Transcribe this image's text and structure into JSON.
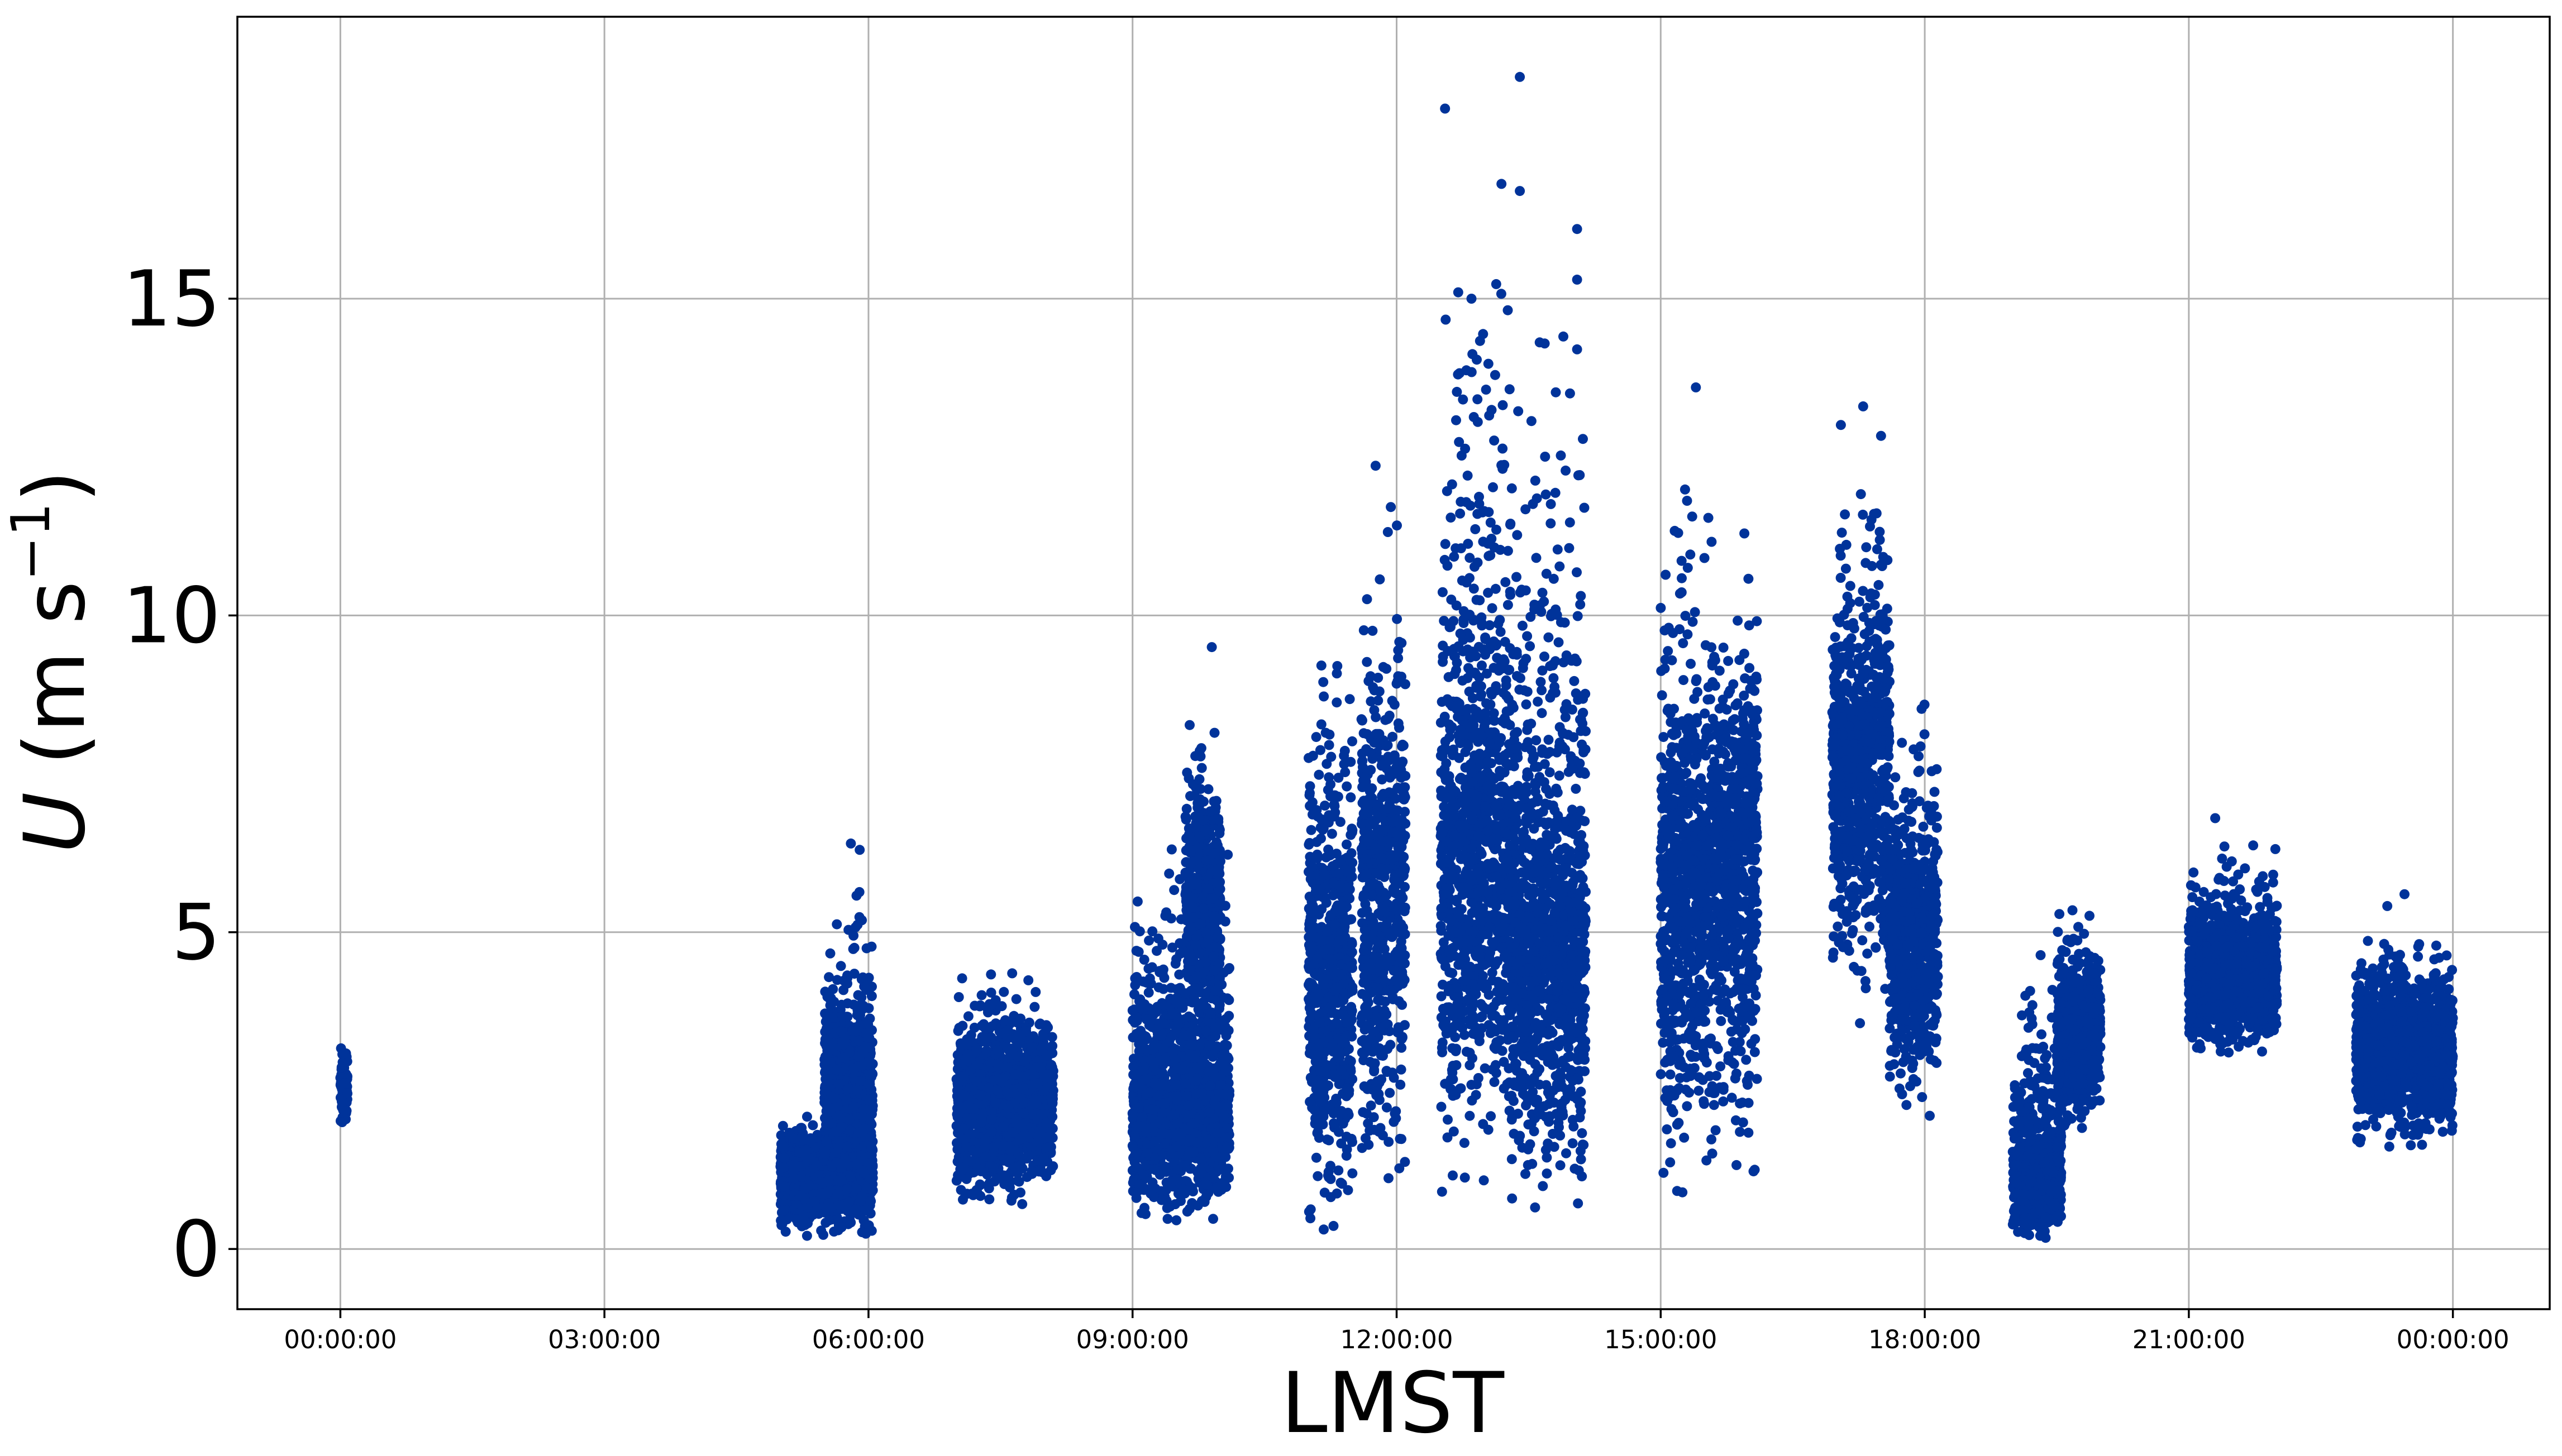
{
  "chart_data": {
    "type": "scatter",
    "xlabel": "LMST",
    "ylabel_symbol": "U",
    "ylabel_units": " (m s",
    "ylabel_exponent": "−1",
    "ylabel_close": ")",
    "x_ticks": [
      "00:00:00",
      "03:00:00",
      "06:00:00",
      "09:00:00",
      "12:00:00",
      "15:00:00",
      "18:00:00",
      "21:00:00",
      "00:00:00"
    ],
    "x_tick_hours": [
      0,
      3,
      6,
      9,
      12,
      15,
      18,
      21,
      24
    ],
    "xlim_hours": [
      -1.17,
      25.1
    ],
    "y_ticks": [
      "0",
      "5",
      "10",
      "15"
    ],
    "y_tick_values": [
      0,
      5,
      10,
      15
    ],
    "ylim": [
      -0.95,
      19.45
    ],
    "grid": true,
    "point_color": "#00339a",
    "series": [
      {
        "values_description_clusters_hours_speed": [
          [
            0.0,
            0.08,
            1.8,
            3.5,
            2.6
          ],
          [
            5.0,
            6.05,
            0.05,
            2.2,
            1.3
          ],
          [
            5.5,
            6.05,
            1.0,
            6.4,
            2.6
          ],
          [
            7.0,
            8.1,
            0.4,
            4.6,
            2.5
          ],
          [
            9.0,
            10.1,
            0.0,
            7.2,
            2.4
          ],
          [
            9.6,
            10.0,
            3.0,
            9.5,
            5.5
          ],
          [
            11.0,
            11.5,
            0.0,
            11.5,
            4.5
          ],
          [
            11.6,
            12.1,
            0.1,
            12.9,
            6.0
          ],
          [
            12.5,
            13.3,
            0.3,
            18.5,
            6.5
          ],
          [
            13.3,
            14.15,
            0.0,
            16.1,
            5.0
          ],
          [
            15.0,
            15.6,
            0.3,
            13.6,
            6.0
          ],
          [
            15.6,
            16.1,
            0.5,
            11.8,
            6.5
          ],
          [
            16.95,
            17.6,
            3.4,
            13.3,
            8.0
          ],
          [
            17.6,
            18.15,
            1.7,
            9.5,
            5.0
          ],
          [
            19.0,
            19.55,
            0.0,
            5.1,
            1.2
          ],
          [
            19.5,
            20.0,
            1.5,
            5.6,
            3.6
          ],
          [
            21.0,
            22.0,
            2.8,
            6.8,
            4.4
          ],
          [
            22.9,
            24.0,
            1.5,
            5.6,
            3.2
          ]
        ]
      }
    ],
    "notable_points": [
      {
        "x_hours": 12.55,
        "y": 18.0
      },
      {
        "x_hours": 13.4,
        "y": 18.5
      },
      {
        "x_hours": 13.4,
        "y": 16.7
      },
      {
        "x_hours": 14.05,
        "y": 16.1
      },
      {
        "x_hours": 14.05,
        "y": 15.3
      },
      {
        "x_hours": 14.05,
        "y": 14.2
      },
      {
        "x_hours": 12.7,
        "y": 15.1
      },
      {
        "x_hours": 12.85,
        "y": 15.0
      },
      {
        "x_hours": 9.9,
        "y": 9.5
      },
      {
        "x_hours": 5.8,
        "y": 6.4
      },
      {
        "x_hours": 5.9,
        "y": 6.3
      },
      {
        "x_hours": 17.3,
        "y": 13.3
      },
      {
        "x_hours": 15.4,
        "y": 13.6
      },
      {
        "x_hours": 21.3,
        "y": 6.8
      },
      {
        "x_hours": 23.45,
        "y": 5.6
      }
    ]
  }
}
